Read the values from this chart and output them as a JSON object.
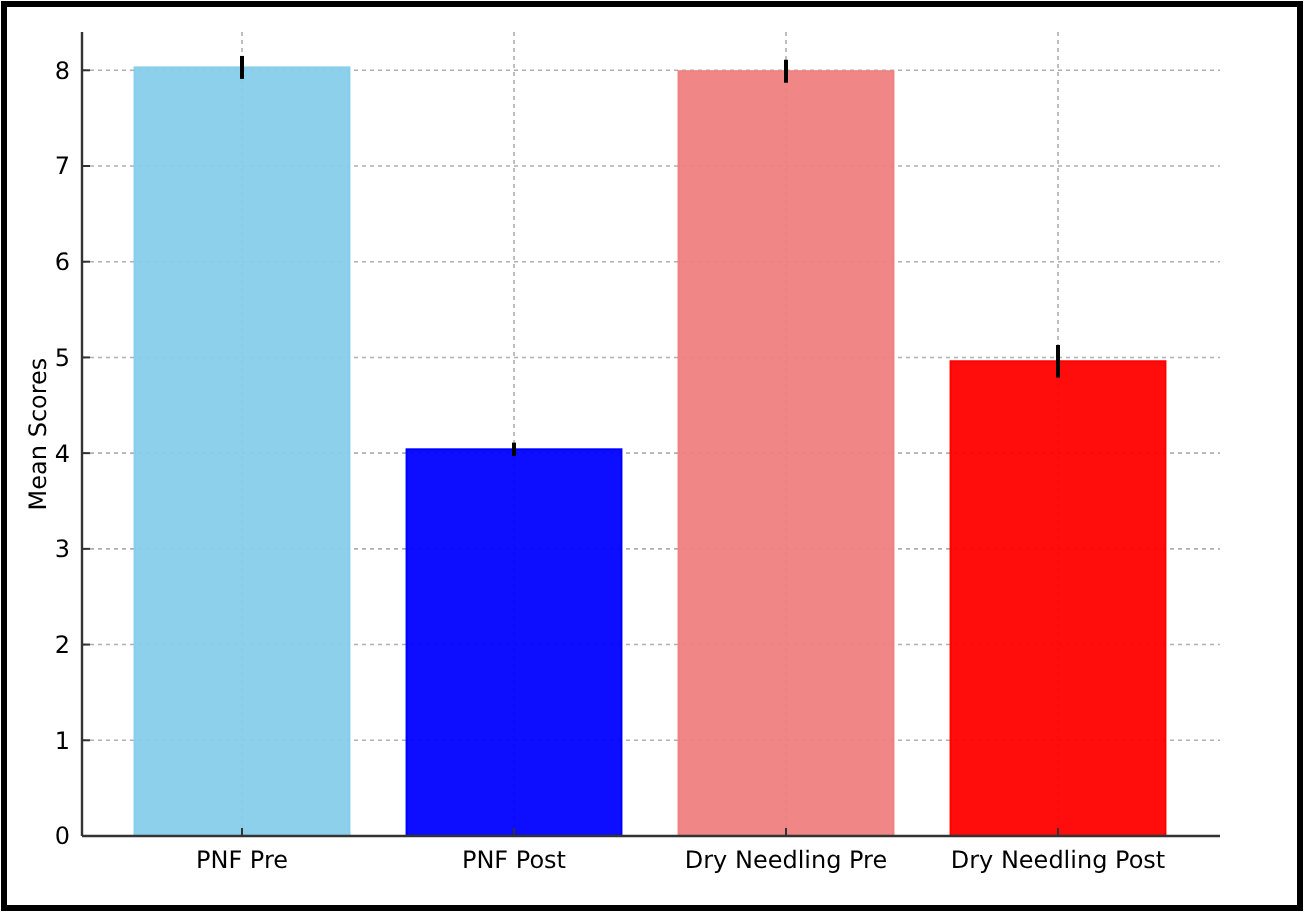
{
  "chart_data": {
    "type": "bar",
    "ylabel": "Mean Scores",
    "categories": [
      "PNF Pre",
      "PNF Post",
      "Dry Needling Pre",
      "Dry Needling Post"
    ],
    "values": [
      8.03,
      4.04,
      7.99,
      4.96
    ],
    "errors": [
      0.12,
      0.07,
      0.12,
      0.17
    ],
    "colors": [
      "#87ceeb",
      "#0000ff",
      "#f08080",
      "#ff0000"
    ],
    "ylim": [
      0,
      8.4
    ],
    "yticks": [
      0,
      1,
      2,
      3,
      4,
      5,
      6,
      7,
      8
    ],
    "grid": true
  }
}
